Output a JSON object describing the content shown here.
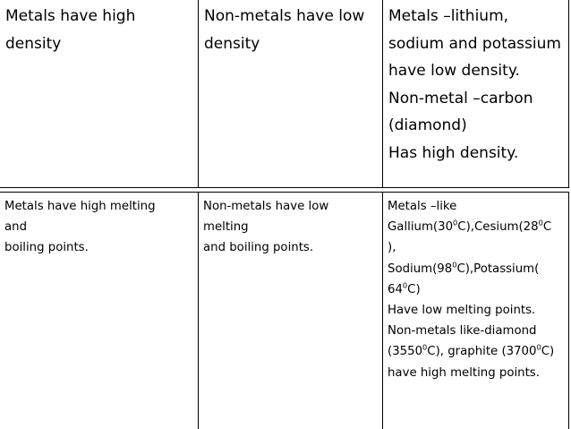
{
  "rows": [
    {
      "cells": [
        {
          "lines": [
            [
              "Metals have high"
            ],
            [
              "density"
            ]
          ]
        },
        {
          "lines": [
            [
              "Non-metals have low"
            ],
            [
              "density"
            ]
          ]
        },
        {
          "lines": [
            [
              "Metals –lithium,"
            ],
            [
              "sodium and potassium"
            ],
            [
              "have low density."
            ],
            [
              "Non-metal –carbon"
            ],
            [
              "(diamond)"
            ],
            [
              "Has high density."
            ]
          ]
        }
      ]
    },
    {
      "cells": [
        {
          "lines": [
            [
              "Metals have high melting"
            ],
            [
              "and"
            ],
            [
              "boiling points."
            ]
          ]
        },
        {
          "lines": [
            [
              "Non-metals have low"
            ],
            [
              "melting"
            ],
            [
              "and boiling points."
            ]
          ]
        },
        {
          "lines": [
            [
              "Metals –like"
            ],
            [
              "Gallium(30",
              {
                "sup": "0"
              },
              "C),Cesium(28",
              {
                "sup": "0"
              },
              "C"
            ],
            [
              "),"
            ],
            [
              "Sodium(98",
              {
                "sup": "0"
              },
              "C),Potassium("
            ],
            [
              "64",
              {
                "sup": "0"
              },
              "C)"
            ],
            [
              "Have low melting points."
            ],
            [
              "Non-metals like-diamond"
            ],
            [
              "(3550",
              {
                "sup": "0"
              },
              "C), graphite (3700",
              {
                "sup": "0"
              },
              "C)"
            ],
            [
              "have high melting points."
            ]
          ]
        }
      ]
    }
  ]
}
